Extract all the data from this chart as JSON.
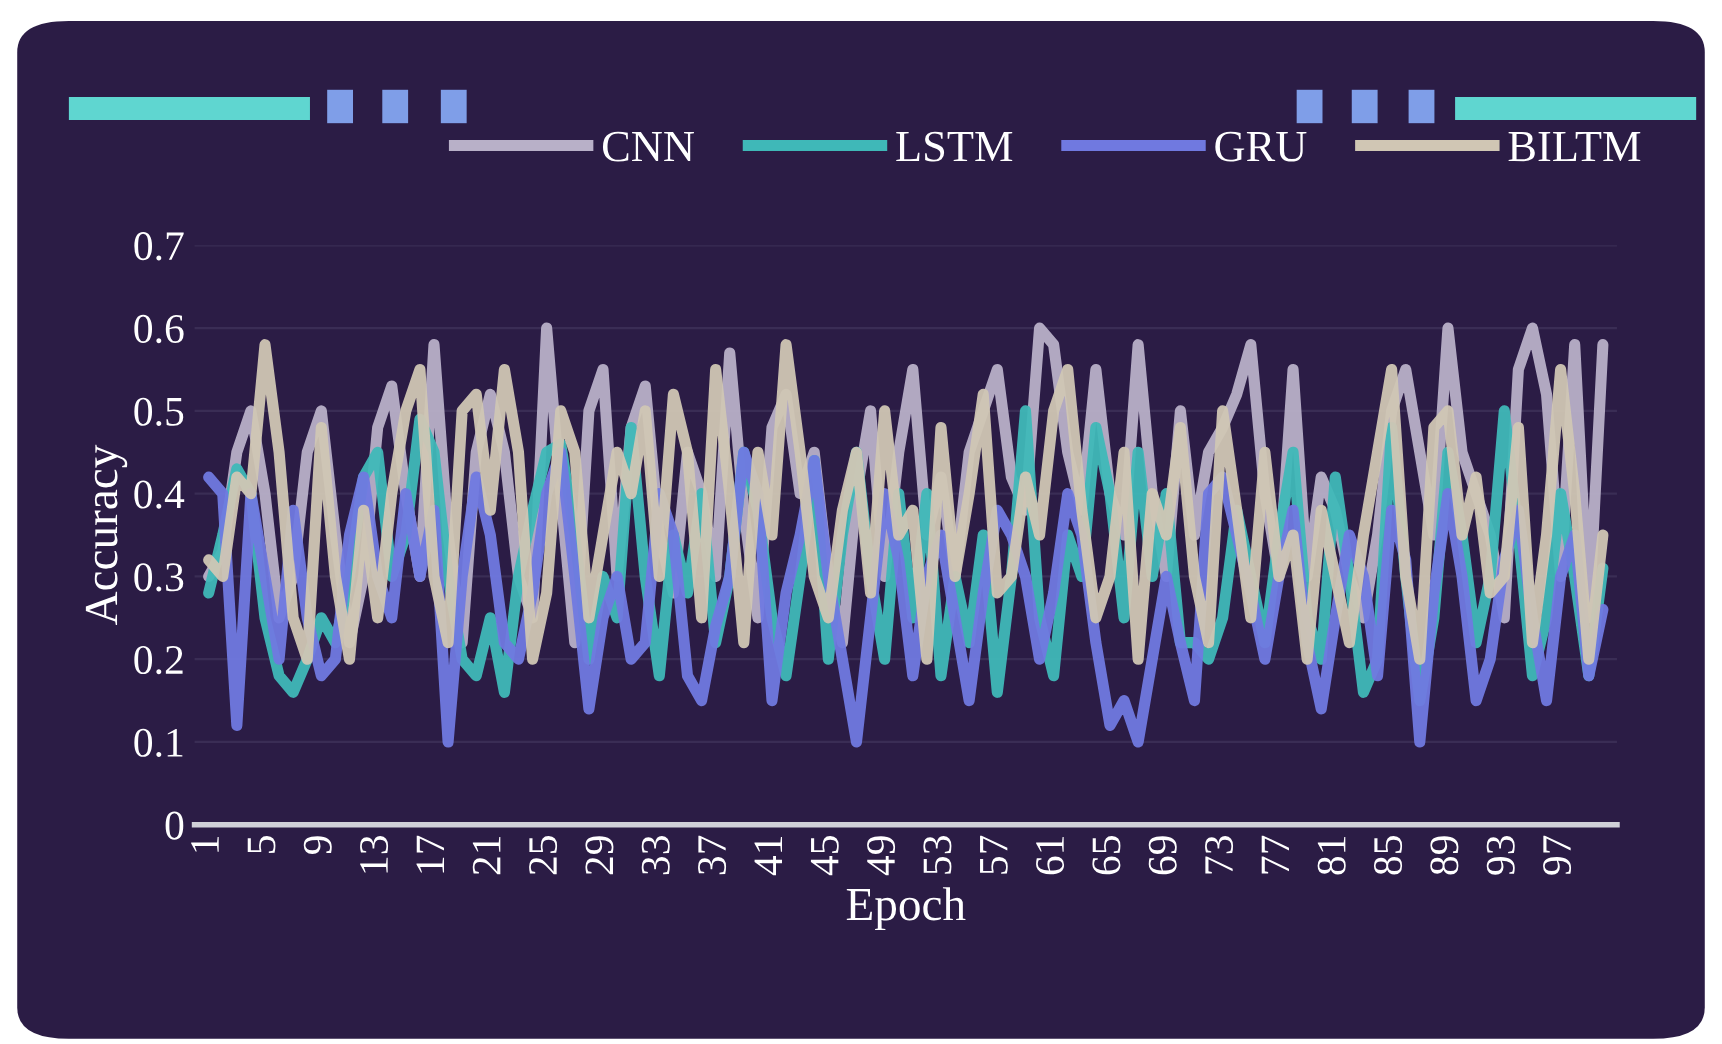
{
  "chart_data": {
    "type": "line",
    "xlabel": "Epoch",
    "ylabel": "Accuracy",
    "categories": [
      "1",
      null,
      null,
      null,
      "5",
      null,
      null,
      null,
      "9",
      null,
      null,
      null,
      "13",
      null,
      null,
      null,
      "17",
      null,
      null,
      null,
      "21",
      null,
      null,
      null,
      "25",
      null,
      null,
      null,
      "29",
      null,
      null,
      null,
      "33",
      null,
      null,
      null,
      "37",
      null,
      null,
      null,
      "41",
      null,
      null,
      null,
      "45",
      null,
      null,
      null,
      "49",
      null,
      null,
      null,
      "53",
      null,
      null,
      null,
      "57",
      null,
      null,
      null,
      "61",
      null,
      null,
      null,
      "65",
      null,
      null,
      null,
      "69",
      null,
      null,
      null,
      "73",
      null,
      null,
      null,
      "77",
      null,
      null,
      null,
      "81",
      null,
      null,
      null,
      "85",
      null,
      null,
      null,
      "89",
      null,
      null,
      null,
      "93",
      null,
      null,
      null,
      "97",
      null,
      null,
      null
    ],
    "ylim": [
      0,
      0.7
    ],
    "yticks": [
      0,
      0.1,
      0.2,
      0.3,
      0.4,
      0.5,
      0.6,
      0.7
    ],
    "grid": "y",
    "legend": "top",
    "marker": "none",
    "line_style": "solid",
    "series": [
      {
        "name": "CNN",
        "color": "#b8b0c8",
        "values": [
          0.3,
          0.33,
          0.45,
          0.5,
          0.4,
          0.25,
          0.3,
          0.45,
          0.5,
          0.35,
          0.22,
          0.3,
          0.48,
          0.53,
          0.4,
          0.3,
          0.58,
          0.35,
          0.22,
          0.45,
          0.52,
          0.45,
          0.3,
          0.25,
          0.6,
          0.4,
          0.22,
          0.5,
          0.55,
          0.3,
          0.48,
          0.53,
          0.35,
          0.28,
          0.45,
          0.4,
          0.3,
          0.57,
          0.38,
          0.25,
          0.48,
          0.52,
          0.4,
          0.45,
          0.3,
          0.22,
          0.4,
          0.5,
          0.3,
          0.45,
          0.55,
          0.35,
          0.42,
          0.3,
          0.45,
          0.5,
          0.55,
          0.42,
          0.38,
          0.6,
          0.58,
          0.45,
          0.38,
          0.55,
          0.4,
          0.35,
          0.58,
          0.4,
          0.3,
          0.5,
          0.35,
          0.45,
          0.48,
          0.52,
          0.58,
          0.4,
          0.3,
          0.55,
          0.3,
          0.42,
          0.38,
          0.3,
          0.25,
          0.35,
          0.5,
          0.55,
          0.45,
          0.35,
          0.6,
          0.45,
          0.4,
          0.35,
          0.25,
          0.55,
          0.6,
          0.52,
          0.3,
          0.58,
          0.25,
          0.58
        ]
      },
      {
        "name": "LSTM",
        "color": "#3fb8b8",
        "values": [
          0.28,
          0.35,
          0.43,
          0.4,
          0.25,
          0.18,
          0.16,
          0.2,
          0.25,
          0.22,
          0.3,
          0.42,
          0.45,
          0.3,
          0.35,
          0.49,
          0.45,
          0.3,
          0.2,
          0.18,
          0.25,
          0.16,
          0.3,
          0.38,
          0.45,
          0.46,
          0.35,
          0.2,
          0.3,
          0.25,
          0.48,
          0.3,
          0.18,
          0.35,
          0.28,
          0.4,
          0.22,
          0.3,
          0.45,
          0.38,
          0.25,
          0.18,
          0.3,
          0.44,
          0.2,
          0.35,
          0.45,
          0.3,
          0.2,
          0.4,
          0.25,
          0.4,
          0.18,
          0.3,
          0.22,
          0.35,
          0.16,
          0.3,
          0.5,
          0.25,
          0.18,
          0.35,
          0.3,
          0.48,
          0.4,
          0.25,
          0.45,
          0.3,
          0.4,
          0.22,
          0.22,
          0.2,
          0.25,
          0.38,
          0.3,
          0.22,
          0.35,
          0.45,
          0.25,
          0.2,
          0.42,
          0.3,
          0.16,
          0.2,
          0.48,
          0.3,
          0.15,
          0.25,
          0.45,
          0.35,
          0.22,
          0.3,
          0.5,
          0.35,
          0.18,
          0.25,
          0.4,
          0.3,
          0.18,
          0.31
        ]
      },
      {
        "name": "GRU",
        "color": "#7079e0",
        "values": [
          0.42,
          0.4,
          0.12,
          0.4,
          0.3,
          0.2,
          0.38,
          0.25,
          0.18,
          0.2,
          0.35,
          0.42,
          0.3,
          0.25,
          0.4,
          0.3,
          0.38,
          0.1,
          0.3,
          0.42,
          0.35,
          0.22,
          0.2,
          0.28,
          0.4,
          0.45,
          0.3,
          0.14,
          0.25,
          0.3,
          0.2,
          0.22,
          0.4,
          0.35,
          0.18,
          0.15,
          0.24,
          0.3,
          0.45,
          0.4,
          0.15,
          0.28,
          0.35,
          0.44,
          0.3,
          0.2,
          0.1,
          0.25,
          0.4,
          0.32,
          0.18,
          0.3,
          0.35,
          0.25,
          0.15,
          0.28,
          0.38,
          0.35,
          0.3,
          0.2,
          0.28,
          0.4,
          0.35,
          0.22,
          0.12,
          0.15,
          0.1,
          0.2,
          0.3,
          0.22,
          0.15,
          0.4,
          0.42,
          0.35,
          0.28,
          0.2,
          0.3,
          0.38,
          0.22,
          0.14,
          0.25,
          0.35,
          0.3,
          0.18,
          0.38,
          0.32,
          0.1,
          0.28,
          0.4,
          0.3,
          0.15,
          0.2,
          0.32,
          0.38,
          0.25,
          0.15,
          0.3,
          0.35,
          0.18,
          0.26
        ]
      },
      {
        "name": "BILTM",
        "color": "#d0c6b4",
        "values": [
          0.32,
          0.3,
          0.42,
          0.4,
          0.58,
          0.45,
          0.25,
          0.2,
          0.48,
          0.3,
          0.2,
          0.38,
          0.25,
          0.4,
          0.5,
          0.55,
          0.3,
          0.22,
          0.5,
          0.52,
          0.38,
          0.55,
          0.45,
          0.2,
          0.28,
          0.5,
          0.45,
          0.25,
          0.35,
          0.45,
          0.4,
          0.5,
          0.3,
          0.52,
          0.45,
          0.25,
          0.55,
          0.4,
          0.22,
          0.45,
          0.35,
          0.58,
          0.45,
          0.3,
          0.25,
          0.38,
          0.45,
          0.28,
          0.5,
          0.35,
          0.38,
          0.2,
          0.48,
          0.3,
          0.4,
          0.52,
          0.28,
          0.3,
          0.42,
          0.35,
          0.5,
          0.55,
          0.38,
          0.25,
          0.3,
          0.45,
          0.2,
          0.4,
          0.35,
          0.48,
          0.3,
          0.22,
          0.5,
          0.38,
          0.25,
          0.45,
          0.3,
          0.35,
          0.2,
          0.38,
          0.3,
          0.22,
          0.35,
          0.45,
          0.55,
          0.3,
          0.2,
          0.48,
          0.5,
          0.35,
          0.42,
          0.28,
          0.3,
          0.48,
          0.22,
          0.35,
          0.55,
          0.4,
          0.2,
          0.35
        ]
      }
    ]
  }
}
